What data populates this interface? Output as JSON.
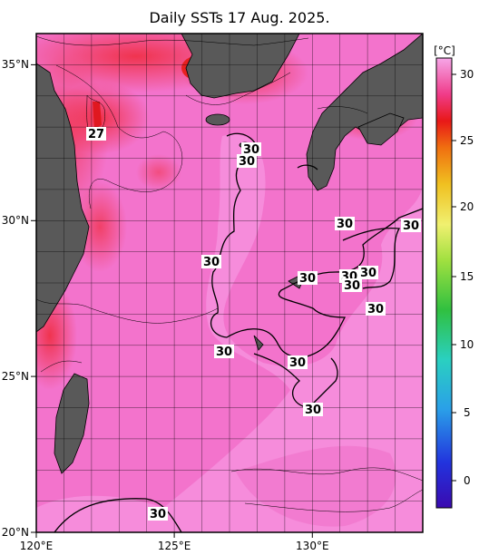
{
  "title": "Daily SSTs 17 Aug. 2025.",
  "map": {
    "lon_range": [
      120,
      134
    ],
    "lat_range": [
      20,
      36
    ],
    "x_ticks": [
      "120°E",
      "125°E",
      "130°E"
    ],
    "y_ticks": [
      "20°N",
      "25°N",
      "30°N",
      "35°N"
    ],
    "grid": true
  },
  "colorbar": {
    "unit": "[°C]",
    "min": -2,
    "max": 32,
    "ticks": [
      "30",
      "25",
      "20",
      "15",
      "10",
      "5",
      "0"
    ]
  },
  "contour_labels": [
    "27",
    "30",
    "30",
    "30",
    "30",
    "30",
    "30",
    "30",
    "30",
    "30",
    "30",
    "30",
    "30",
    "30",
    "30"
  ],
  "colors": {
    "warm_sea": "#f47ad8",
    "hot_sea": "#f03c5a",
    "land": "#595959",
    "frame": "#000000"
  }
}
